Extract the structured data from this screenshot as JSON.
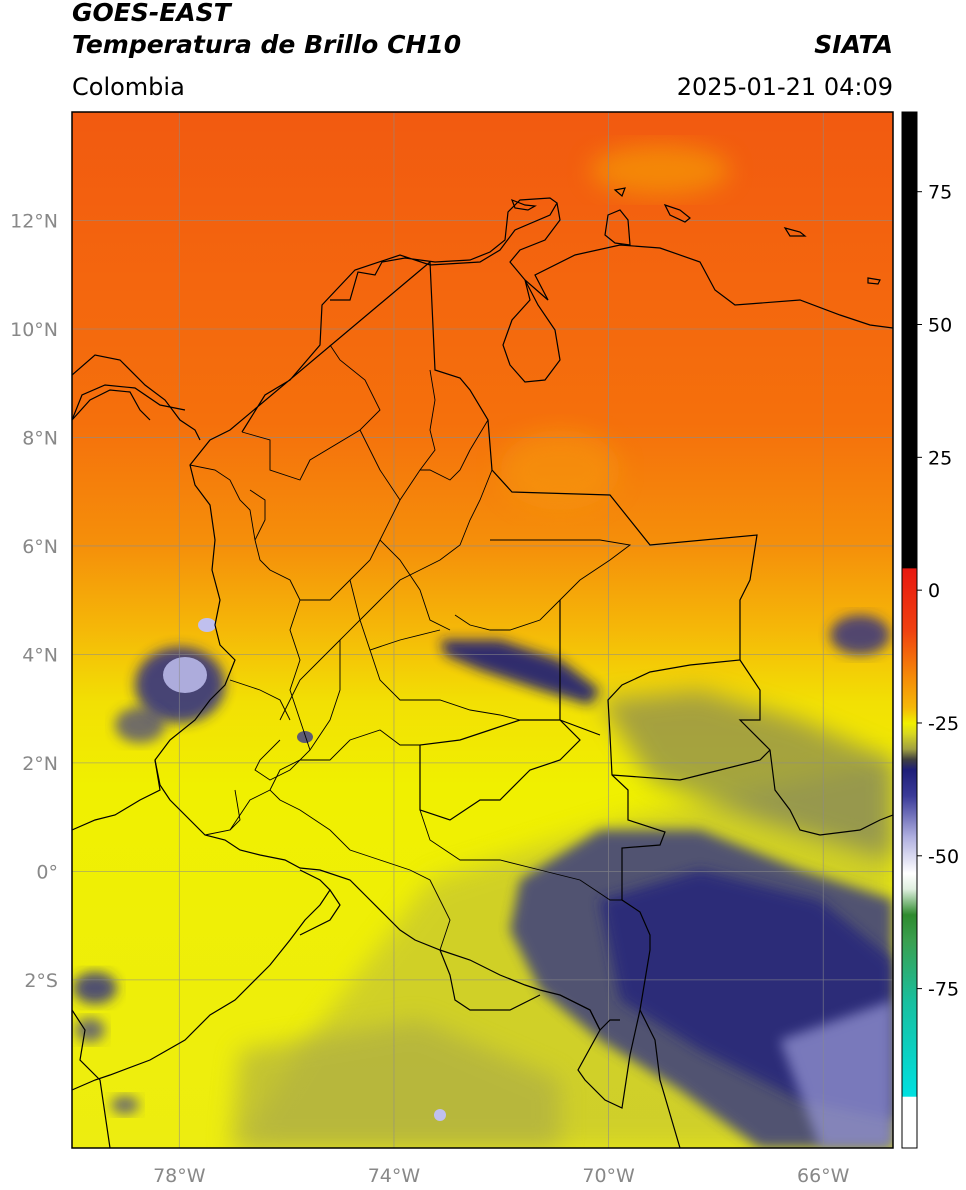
{
  "header": {
    "satellite": "GOES-EAST",
    "product": "Temperatura de Brillo CH10",
    "organization": "SIATA",
    "region": "Colombia",
    "timestamp": "2025-01-21 04:09"
  },
  "map": {
    "lon_range": [
      -80,
      -64.7
    ],
    "lat_range": [
      -5.1,
      14
    ],
    "lat_ticks": [
      {
        "value": 12,
        "label": "12°N"
      },
      {
        "value": 10,
        "label": "10°N"
      },
      {
        "value": 8,
        "label": "8°N"
      },
      {
        "value": 6,
        "label": "6°N"
      },
      {
        "value": 4,
        "label": "4°N"
      },
      {
        "value": 2,
        "label": "2°N"
      },
      {
        "value": 0,
        "label": "0°"
      },
      {
        "value": -2,
        "label": "2°S"
      }
    ],
    "lon_ticks": [
      {
        "value": -78,
        "label": "78°W"
      },
      {
        "value": -74,
        "label": "74°W"
      },
      {
        "value": -70,
        "label": "70°W"
      },
      {
        "value": -66,
        "label": "66°W"
      }
    ]
  },
  "colorbar": {
    "range": [
      -105,
      90
    ],
    "ticks": [
      {
        "value": 75,
        "label": "75"
      },
      {
        "value": 50,
        "label": "50"
      },
      {
        "value": 25,
        "label": "25"
      },
      {
        "value": 0,
        "label": "0"
      },
      {
        "value": -25,
        "label": "-25"
      },
      {
        "value": -50,
        "label": "-50"
      },
      {
        "value": -75,
        "label": "-75"
      }
    ],
    "colors": {
      "black": "#000000",
      "red": "#e81810",
      "orange": "#f58a08",
      "yellow": "#f0f000",
      "olive": "#a0a040",
      "navy": "#1e1e78",
      "lavender": "#b0b0e0",
      "white": "#ffffff",
      "green": "#2e8b2e",
      "teal": "#18c0a0",
      "cyan": "#00e0e0"
    }
  }
}
